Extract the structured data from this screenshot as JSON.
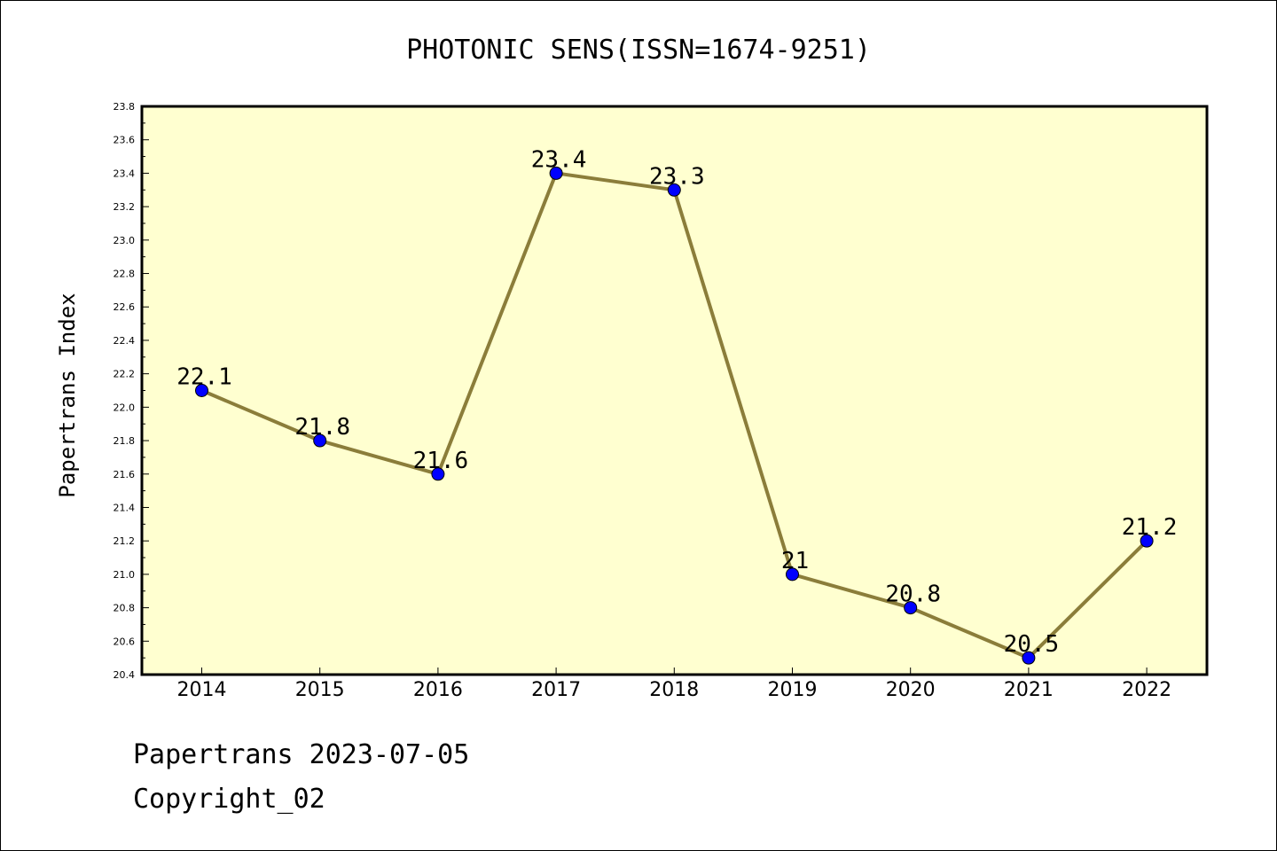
{
  "chart_data": {
    "type": "line",
    "title": "PHOTONIC SENS(ISSN=1674-9251)",
    "xlabel": "",
    "ylabel": "Papertrans Index",
    "categories": [
      "2014",
      "2015",
      "2016",
      "2017",
      "2018",
      "2019",
      "2020",
      "2021",
      "2022"
    ],
    "series": [
      {
        "values": [
          22.1,
          21.8,
          21.6,
          23.4,
          23.3,
          21,
          20.8,
          20.5,
          21.2
        ],
        "data_labels": [
          "22.1",
          "21.8",
          "21.6",
          "23.4",
          "23.3",
          "21",
          "20.8",
          "20.5",
          "21.2"
        ]
      }
    ],
    "ylim": [
      20.4,
      23.8
    ],
    "yticks": [
      "20.4",
      "20.6",
      "20.8",
      "21.0",
      "21.2",
      "21.4",
      "21.6",
      "21.8",
      "22.0",
      "22.2",
      "22.4",
      "22.6",
      "22.8",
      "23.0",
      "23.2",
      "23.4",
      "23.6",
      "23.8"
    ],
    "grid": false,
    "legend": "none",
    "colors": {
      "plot_background": "#ffffd0",
      "line": "#8b7d3a",
      "marker": "#0000ff"
    }
  },
  "footer": {
    "line1": "Papertrans 2023-07-05",
    "line2": "Copyright_02"
  }
}
